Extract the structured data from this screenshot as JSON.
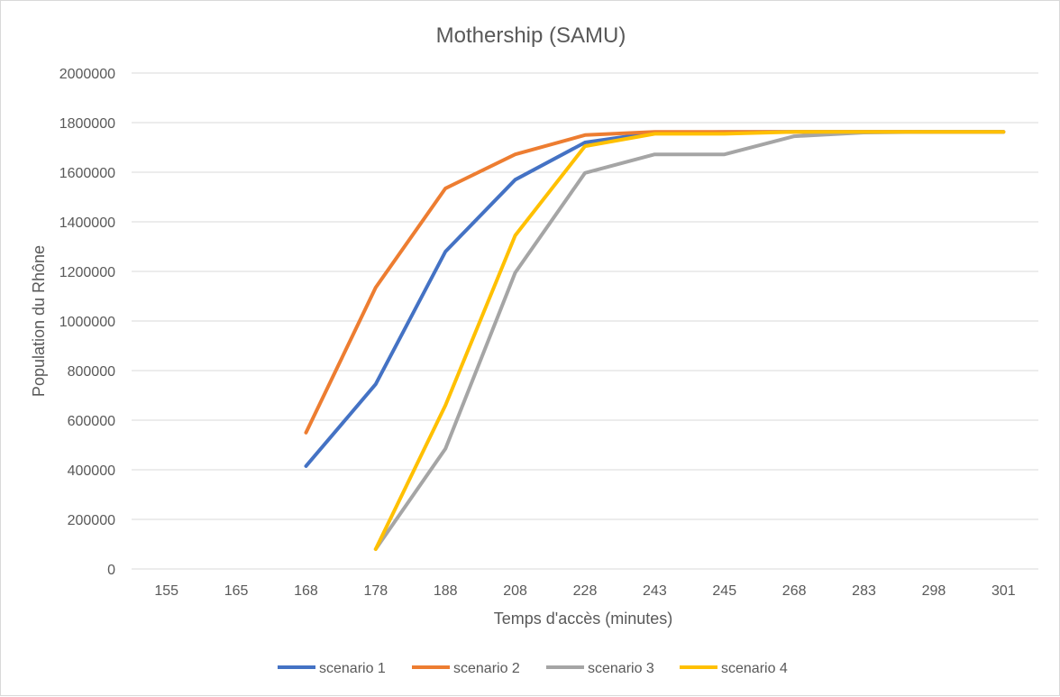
{
  "chart_data": {
    "type": "line",
    "title": "Mothership (SAMU)",
    "xlabel": "Temps d'accès (minutes)",
    "ylabel": "Population du Rhône",
    "categories": [
      "155",
      "165",
      "168",
      "178",
      "188",
      "208",
      "228",
      "243",
      "245",
      "268",
      "283",
      "298",
      "301"
    ],
    "ylim": [
      0,
      2000000
    ],
    "yticks": [
      0,
      200000,
      400000,
      600000,
      800000,
      1000000,
      1200000,
      1400000,
      1600000,
      1800000,
      2000000
    ],
    "grid": true,
    "legend": "bottom",
    "series": [
      {
        "name": "scenario 1",
        "color": "#4472C4",
        "values": [
          null,
          null,
          415000,
          745000,
          1280000,
          1570000,
          1720000,
          1760000,
          1762000,
          1763000,
          1763000,
          1763000,
          1763000
        ]
      },
      {
        "name": "scenario 2",
        "color": "#ED7D31",
        "values": [
          null,
          null,
          550000,
          1135000,
          1535000,
          1672000,
          1750000,
          1763000,
          1763000,
          1763000,
          1763000,
          1763000,
          1763000
        ]
      },
      {
        "name": "scenario 3",
        "color": "#A5A5A5",
        "values": [
          null,
          null,
          null,
          80000,
          485000,
          1195000,
          1597000,
          1672000,
          1672000,
          1745000,
          1760000,
          1763000,
          1763000
        ]
      },
      {
        "name": "scenario 4",
        "color": "#FFC000",
        "values": [
          null,
          null,
          null,
          80000,
          660000,
          1345000,
          1705000,
          1755000,
          1755000,
          1763000,
          1763000,
          1763000,
          1763000
        ]
      }
    ]
  }
}
